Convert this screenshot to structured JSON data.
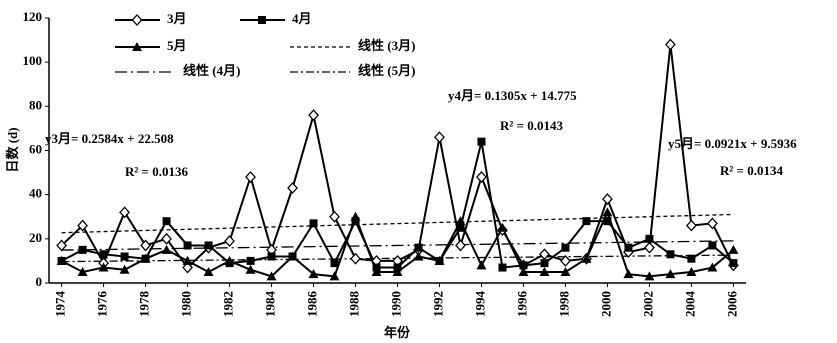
{
  "chart_data": {
    "type": "line",
    "x": [
      1974,
      1975,
      1976,
      1977,
      1978,
      1979,
      1980,
      1981,
      1982,
      1983,
      1984,
      1985,
      1986,
      1987,
      1988,
      1989,
      1990,
      1991,
      1992,
      1993,
      1994,
      1995,
      1996,
      1997,
      1998,
      1999,
      2000,
      2001,
      2002,
      2003,
      2004,
      2005,
      2006
    ],
    "series": [
      {
        "name": "3月",
        "color": "#000000",
        "marker": "diamond",
        "values": [
          17,
          26,
          9,
          32,
          17,
          20,
          7,
          16,
          19,
          48,
          15,
          43,
          76,
          30,
          11,
          10,
          10,
          15,
          66,
          17,
          48,
          24,
          8,
          13,
          10,
          11,
          38,
          14,
          16,
          108,
          26,
          27,
          8
        ]
      },
      {
        "name": "4月",
        "color": "#000000",
        "marker": "square",
        "values": [
          10,
          15,
          13,
          12,
          11,
          28,
          17,
          17,
          9,
          10,
          12,
          12,
          27,
          9,
          28,
          7,
          7,
          16,
          10,
          25,
          64,
          7,
          8,
          9,
          16,
          28,
          28,
          16,
          20,
          13,
          11,
          17,
          9
        ]
      },
      {
        "name": "5月",
        "color": "#000000",
        "marker": "triangle",
        "values": [
          10,
          5,
          7,
          6,
          11,
          15,
          10,
          5,
          10,
          6,
          3,
          12,
          4,
          3,
          30,
          5,
          5,
          12,
          10,
          28,
          8,
          25,
          5,
          5,
          5,
          11,
          32,
          4,
          3,
          4,
          5,
          7,
          15
        ]
      }
    ],
    "trendlines": [
      {
        "name": "线性 (3月)",
        "slope": 0.2584,
        "intercept": 22.508,
        "dash": "4,3"
      },
      {
        "name": "线性 (4月)",
        "slope": 0.1305,
        "intercept": 14.775,
        "dash": "12,4,2,4"
      },
      {
        "name": "线性 (5月)",
        "slope": 0.0921,
        "intercept": 9.5936,
        "dash": "8,3,2,3"
      }
    ],
    "annotations": [
      "y3月= 0.2584x + 22.508",
      "R² = 0.0136",
      "y4月= 0.1305x + 14.775",
      "R² = 0.0143",
      "y5月= 0.0921x + 9.5936",
      "R² = 0.0134"
    ],
    "xlabel": "年份",
    "ylabel": "日数 (d)",
    "xlim": [
      1973.4,
      2006.6
    ],
    "xticks": [
      1974,
      1976,
      1978,
      1980,
      1982,
      1984,
      1986,
      1988,
      1990,
      1992,
      1994,
      1996,
      1998,
      2000,
      2002,
      2004,
      2006
    ],
    "ylim": [
      0,
      120
    ],
    "yticks": [
      0,
      20,
      40,
      60,
      80,
      100,
      120
    ]
  }
}
